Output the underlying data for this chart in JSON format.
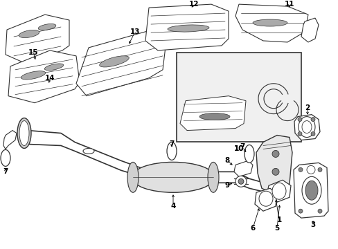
{
  "background_color": "#ffffff",
  "fig_width": 4.89,
  "fig_height": 3.6,
  "dpi": 100
}
